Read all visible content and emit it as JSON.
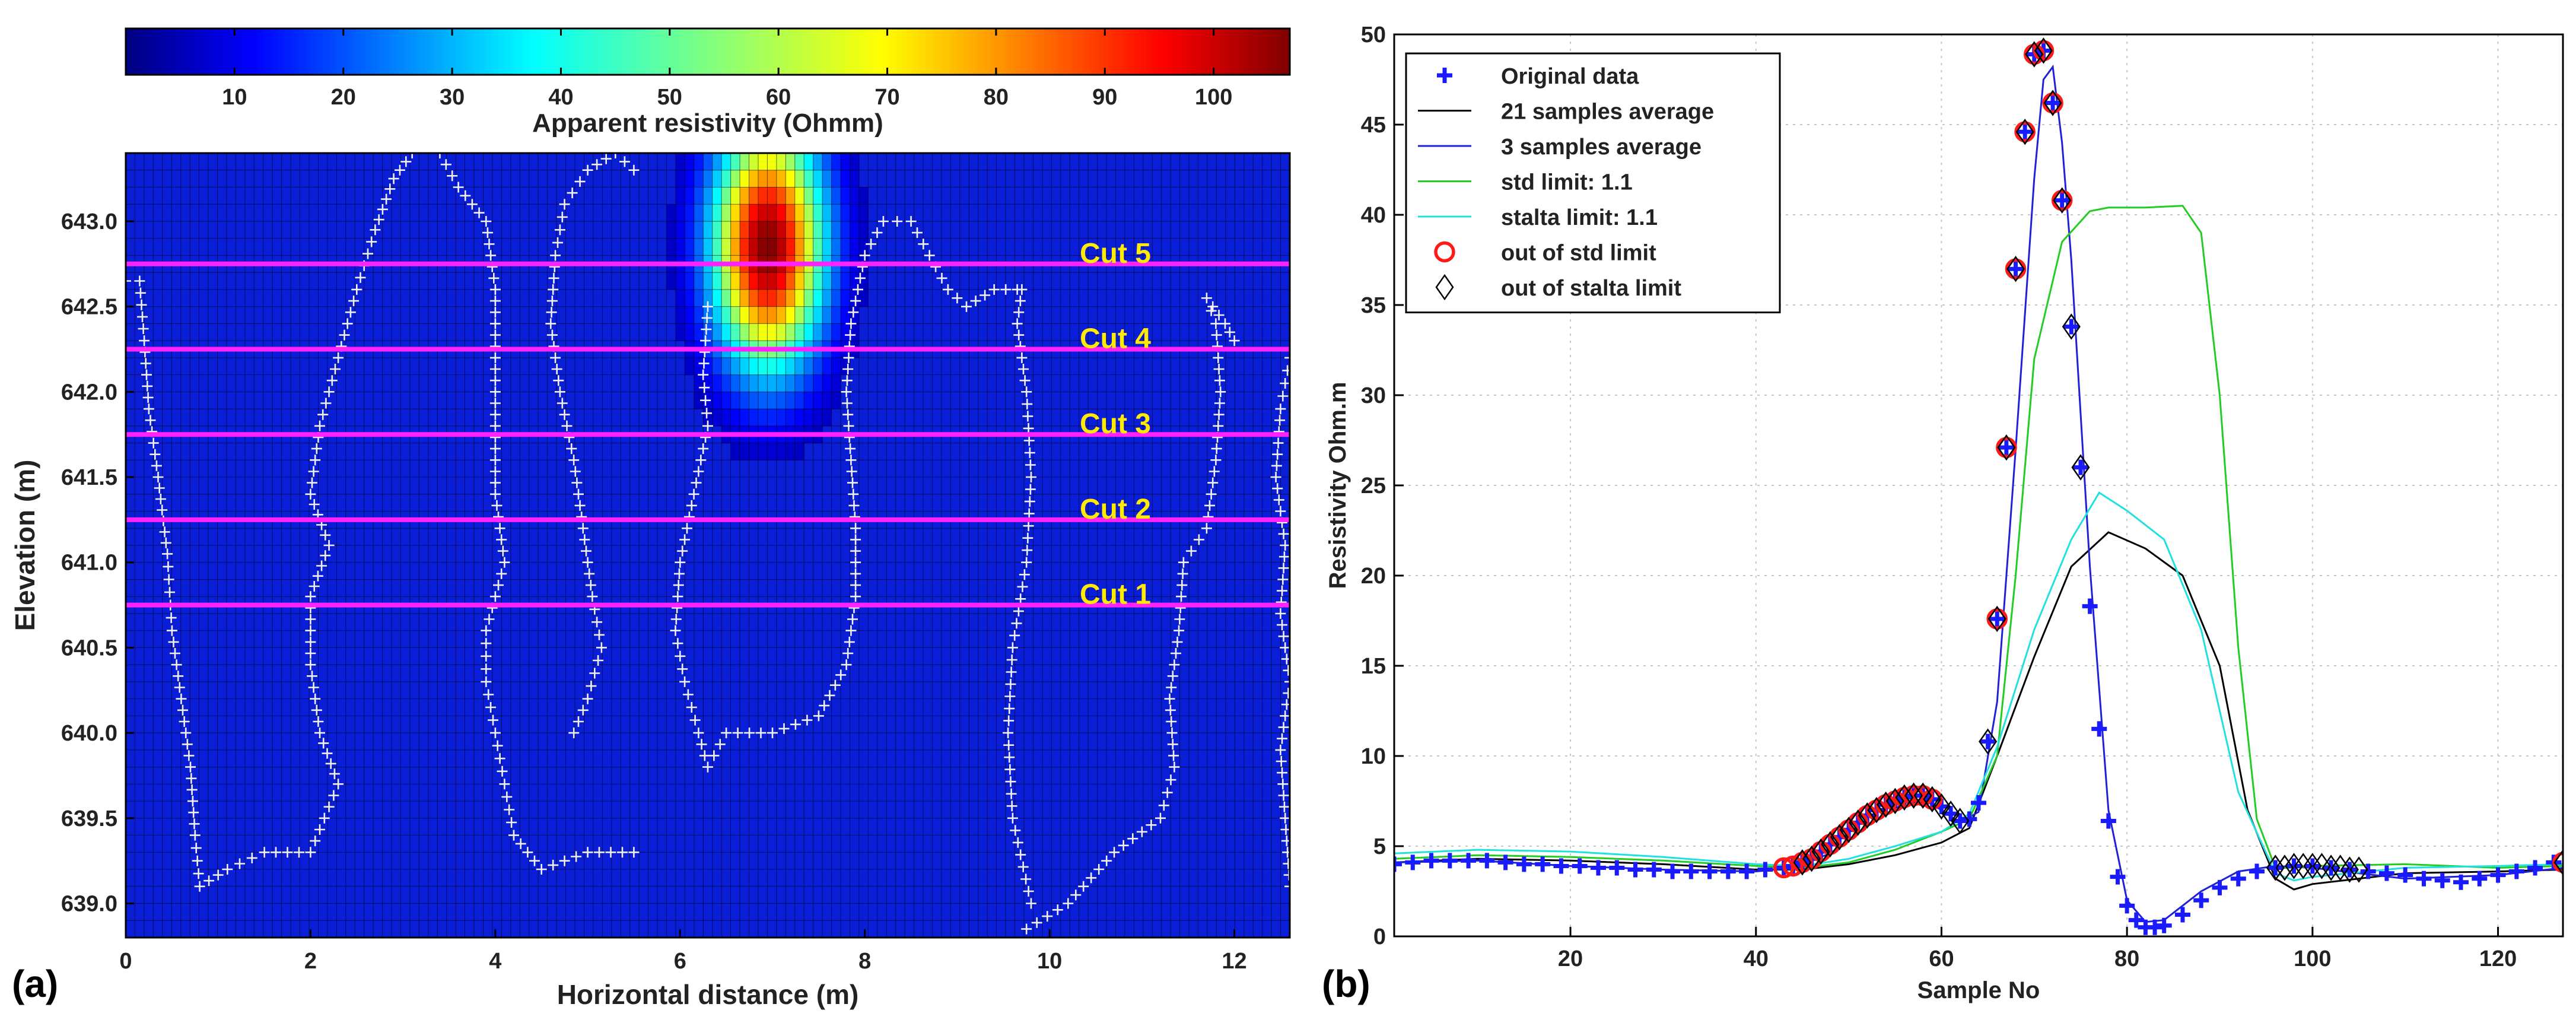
{
  "chart_data": [
    {
      "panel_label": "(a)",
      "type": "heatmap",
      "colorbar": {
        "title": "Apparent resistivity (Ohmm)",
        "range": [
          0,
          107
        ],
        "ticks": [
          10,
          20,
          30,
          40,
          50,
          60,
          70,
          80,
          90,
          100
        ],
        "colormap": "jet"
      },
      "xlabel": "Horizontal distance (m)",
      "ylabel": "Elevation (m)",
      "xlim": [
        0,
        12.6
      ],
      "ylim": [
        638.8,
        643.4
      ],
      "xticks": [
        0,
        2,
        4,
        6,
        8,
        10,
        12
      ],
      "yticks": [
        639.0,
        639.5,
        640.0,
        640.5,
        641.0,
        641.5,
        642.0,
        642.5,
        643.0
      ],
      "ytick_labels": [
        "639.0",
        "639.5",
        "640.0",
        "640.5",
        "641.0",
        "641.5",
        "642.0",
        "642.5",
        "643.0"
      ],
      "background_value": 3,
      "anomaly": {
        "x": 6.95,
        "y": 642.85,
        "peak": 107
      },
      "cuts": [
        {
          "label": "Cut 5",
          "elevation": 642.75
        },
        {
          "label": "Cut 4",
          "elevation": 642.25
        },
        {
          "label": "Cut 3",
          "elevation": 641.75
        },
        {
          "label": "Cut 2",
          "elevation": 641.25
        },
        {
          "label": "Cut 1",
          "elevation": 640.75
        }
      ],
      "cut_color": "#ff22ff",
      "cut_label_color": "#ffea00",
      "contour_color": "#f0f0f0",
      "contours": [
        [
          [
            0.0,
            642.65
          ],
          [
            0.15,
            642.65
          ],
          [
            0.2,
            642.3
          ],
          [
            0.25,
            641.9
          ],
          [
            0.35,
            641.5
          ],
          [
            0.45,
            641.05
          ],
          [
            0.5,
            640.6
          ],
          [
            0.6,
            640.2
          ],
          [
            0.7,
            639.8
          ],
          [
            0.75,
            639.4
          ],
          [
            0.8,
            639.1
          ],
          [
            1.1,
            639.2
          ],
          [
            1.5,
            639.3
          ],
          [
            2.0,
            639.3
          ],
          [
            2.3,
            639.7
          ],
          [
            2.1,
            640.0
          ],
          [
            2.0,
            640.4
          ],
          [
            2.0,
            640.8
          ],
          [
            2.2,
            641.1
          ],
          [
            2.0,
            641.4
          ],
          [
            2.1,
            641.8
          ],
          [
            2.3,
            642.2
          ],
          [
            2.5,
            642.6
          ],
          [
            2.7,
            642.95
          ],
          [
            2.9,
            643.25
          ],
          [
            3.1,
            643.4
          ]
        ],
        [
          [
            3.4,
            643.4
          ],
          [
            3.6,
            643.2
          ],
          [
            3.9,
            643.0
          ],
          [
            4.0,
            642.6
          ],
          [
            4.0,
            642.2
          ],
          [
            4.0,
            641.8
          ],
          [
            4.0,
            641.4
          ],
          [
            4.1,
            641.0
          ],
          [
            3.9,
            640.6
          ],
          [
            3.9,
            640.3
          ],
          [
            4.0,
            640.0
          ],
          [
            4.1,
            639.7
          ],
          [
            4.2,
            639.4
          ],
          [
            4.5,
            639.2
          ],
          [
            5.0,
            639.3
          ],
          [
            5.5,
            639.3
          ]
        ],
        [
          [
            5.5,
            643.3
          ],
          [
            5.3,
            643.4
          ],
          [
            5.0,
            643.3
          ],
          [
            4.75,
            643.1
          ],
          [
            4.65,
            642.8
          ],
          [
            4.6,
            642.4
          ],
          [
            4.7,
            642.0
          ],
          [
            4.85,
            641.6
          ],
          [
            4.95,
            641.2
          ],
          [
            5.05,
            640.8
          ],
          [
            5.15,
            640.5
          ],
          [
            5.0,
            640.2
          ],
          [
            4.85,
            640.0
          ]
        ],
        [
          [
            6.3,
            642.5
          ],
          [
            6.25,
            642.1
          ],
          [
            6.3,
            641.8
          ],
          [
            6.15,
            641.4
          ],
          [
            6.0,
            641.0
          ],
          [
            5.95,
            640.6
          ],
          [
            6.05,
            640.3
          ],
          [
            6.2,
            640.0
          ],
          [
            6.3,
            639.8
          ],
          [
            6.5,
            640.0
          ],
          [
            7.0,
            640.0
          ],
          [
            7.5,
            640.1
          ],
          [
            7.8,
            640.4
          ],
          [
            7.9,
            640.8
          ],
          [
            7.9,
            641.2
          ],
          [
            7.85,
            641.6
          ],
          [
            7.8,
            642.0
          ],
          [
            7.85,
            642.4
          ],
          [
            8.0,
            642.8
          ],
          [
            8.2,
            643.0
          ],
          [
            8.5,
            643.0
          ],
          [
            8.7,
            642.8
          ],
          [
            8.9,
            642.6
          ],
          [
            9.1,
            642.5
          ],
          [
            9.4,
            642.6
          ],
          [
            9.65,
            642.6
          ]
        ],
        [
          [
            9.8,
            639.0
          ],
          [
            9.6,
            639.5
          ],
          [
            9.55,
            640.0
          ],
          [
            9.6,
            640.5
          ],
          [
            9.75,
            641.0
          ],
          [
            9.8,
            641.5
          ],
          [
            9.75,
            642.0
          ],
          [
            9.65,
            642.4
          ],
          [
            9.7,
            642.6
          ]
        ],
        [
          [
            9.75,
            638.85
          ],
          [
            10.2,
            639.0
          ],
          [
            10.7,
            639.3
          ],
          [
            11.2,
            639.5
          ],
          [
            11.35,
            639.8
          ],
          [
            11.3,
            640.2
          ],
          [
            11.4,
            640.6
          ],
          [
            11.45,
            641.0
          ],
          [
            11.7,
            641.2
          ],
          [
            11.8,
            641.6
          ],
          [
            11.85,
            642.0
          ],
          [
            11.8,
            642.4
          ],
          [
            11.7,
            642.55
          ],
          [
            11.9,
            642.4
          ],
          [
            12.0,
            642.3
          ]
        ],
        [
          [
            12.6,
            642.2
          ],
          [
            12.5,
            641.9
          ],
          [
            12.45,
            641.5
          ],
          [
            12.55,
            641.1
          ],
          [
            12.5,
            640.7
          ],
          [
            12.6,
            640.3
          ],
          [
            12.5,
            639.9
          ],
          [
            12.55,
            639.5
          ],
          [
            12.6,
            639.1
          ]
        ]
      ]
    },
    {
      "panel_label": "(b)",
      "type": "line",
      "xlabel": "Sample No",
      "ylabel": "Resistivity Ohm.m",
      "xlim": [
        1,
        127
      ],
      "ylim": [
        0,
        50
      ],
      "xticks": [
        20,
        40,
        60,
        80,
        100,
        120
      ],
      "yticks": [
        0,
        5,
        10,
        15,
        20,
        25,
        30,
        35,
        40,
        45,
        50
      ],
      "grid": true,
      "legend_position": "top-left",
      "series": [
        {
          "name": "Original data",
          "marker": "plus",
          "color": "#1a1aff",
          "x": [
            1,
            3,
            5,
            7,
            9,
            11,
            13,
            15,
            17,
            19,
            21,
            23,
            25,
            27,
            29,
            31,
            33,
            35,
            37,
            39,
            41,
            43,
            44,
            45,
            46,
            47,
            48,
            49,
            50,
            51,
            52,
            53,
            54,
            55,
            56,
            57,
            58,
            59,
            60,
            61,
            62,
            63,
            64,
            65,
            66,
            67,
            68,
            69,
            70,
            71,
            72,
            73,
            74,
            75,
            76,
            77,
            78,
            79,
            80,
            81,
            82,
            83,
            84,
            86,
            88,
            90,
            92,
            94,
            96,
            98,
            100,
            102,
            104,
            106,
            108,
            110,
            112,
            114,
            116,
            118,
            120,
            122,
            124,
            126
          ],
          "y": [
            4.0,
            4.1,
            4.2,
            4.2,
            4.2,
            4.2,
            4.1,
            4.0,
            4.0,
            3.9,
            3.9,
            3.8,
            3.8,
            3.7,
            3.7,
            3.6,
            3.6,
            3.6,
            3.6,
            3.6,
            3.7,
            3.8,
            3.9,
            4.1,
            4.3,
            4.7,
            5.1,
            5.5,
            5.9,
            6.3,
            6.7,
            7.0,
            7.3,
            7.5,
            7.7,
            7.8,
            7.8,
            7.6,
            7.2,
            6.8,
            6.4,
            6.5,
            7.4,
            10.8,
            17.6,
            27.1,
            37.0,
            44.6,
            48.9,
            49.1,
            46.2,
            40.8,
            33.8,
            26.0,
            18.3,
            11.5,
            6.4,
            3.3,
            1.7,
            0.9,
            0.5,
            0.5,
            0.6,
            1.2,
            2.0,
            2.7,
            3.2,
            3.6,
            3.8,
            3.9,
            3.9,
            3.8,
            3.7,
            3.6,
            3.5,
            3.4,
            3.2,
            3.1,
            3.0,
            3.2,
            3.4,
            3.6,
            3.8,
            4.1
          ]
        },
        {
          "name": "21 samples average",
          "color": "#000000",
          "x": [
            1,
            10,
            20,
            30,
            40,
            45,
            50,
            55,
            60,
            63,
            66,
            70,
            74,
            78,
            82,
            86,
            90,
            93,
            96,
            98,
            100,
            110,
            120,
            127
          ],
          "y": [
            4.1,
            4.3,
            4.2,
            4.0,
            3.7,
            3.7,
            4.0,
            4.5,
            5.2,
            6.0,
            10.0,
            15.5,
            20.5,
            22.4,
            21.5,
            20.0,
            15.0,
            7.0,
            3.2,
            2.6,
            2.9,
            3.5,
            3.6,
            3.7
          ]
        },
        {
          "name": "3 samples average",
          "color": "#2020d8",
          "x": [
            1,
            10,
            20,
            30,
            40,
            44,
            48,
            52,
            56,
            58,
            60,
            62,
            64,
            66,
            68,
            70,
            71,
            72,
            73,
            74,
            76,
            78,
            80,
            82,
            84,
            88,
            92,
            96,
            100,
            110,
            120,
            127
          ],
          "y": [
            4.1,
            4.2,
            3.9,
            3.7,
            3.6,
            3.8,
            4.6,
            6.1,
            7.4,
            7.6,
            7.0,
            6.3,
            6.9,
            13.0,
            27.0,
            42.0,
            47.5,
            48.2,
            44.0,
            37.5,
            20.5,
            7.0,
            2.0,
            0.8,
            0.9,
            2.5,
            3.6,
            3.9,
            3.8,
            3.2,
            3.4,
            3.8
          ]
        },
        {
          "name": "std limit: 1.1",
          "color": "#22cc22",
          "x": [
            1,
            10,
            20,
            30,
            40,
            45,
            50,
            55,
            60,
            63,
            66,
            68,
            70,
            73,
            76,
            78,
            82,
            86,
            88,
            90,
            92,
            94,
            96,
            98,
            100,
            110,
            120,
            127
          ],
          "y": [
            4.3,
            4.5,
            4.4,
            4.2,
            3.9,
            3.8,
            4.1,
            4.8,
            5.8,
            6.5,
            10.0,
            20.0,
            32.0,
            38.5,
            40.2,
            40.4,
            40.4,
            40.5,
            39.0,
            30.0,
            16.0,
            6.5,
            3.8,
            3.8,
            3.9,
            4.0,
            3.8,
            3.9
          ]
        },
        {
          "name": "stalta limit: 1.1",
          "color": "#20e0e0",
          "x": [
            1,
            10,
            20,
            30,
            40,
            45,
            50,
            55,
            60,
            63,
            66,
            70,
            74,
            77,
            80,
            84,
            88,
            92,
            96,
            98,
            100,
            110,
            120,
            127
          ],
          "y": [
            4.6,
            4.8,
            4.7,
            4.4,
            4.0,
            3.9,
            4.3,
            5.0,
            5.8,
            6.8,
            10.5,
            17.0,
            22.0,
            24.6,
            23.6,
            22.0,
            17.0,
            8.0,
            3.5,
            3.1,
            3.3,
            3.8,
            3.9,
            4.0
          ]
        },
        {
          "name": "out of std limit",
          "marker": "circle",
          "color": "#ff1a1a",
          "x": [
            43,
            44,
            45,
            46,
            47,
            48,
            49,
            50,
            51,
            52,
            53,
            54,
            55,
            56,
            57,
            58,
            59,
            66,
            67,
            68,
            69,
            70,
            71,
            72,
            73,
            127
          ],
          "y": [
            3.8,
            3.9,
            4.1,
            4.3,
            4.7,
            5.1,
            5.5,
            5.9,
            6.3,
            6.7,
            7.0,
            7.3,
            7.5,
            7.7,
            7.8,
            7.8,
            7.6,
            17.6,
            27.1,
            37.0,
            44.6,
            48.9,
            49.1,
            46.2,
            40.8,
            4.1
          ]
        },
        {
          "name": "out of stalta limit",
          "marker": "diamond",
          "color": "#000000",
          "x": [
            45,
            46,
            47,
            48,
            49,
            50,
            51,
            52,
            53,
            54,
            55,
            56,
            57,
            58,
            59,
            60,
            61,
            62,
            65,
            66,
            67,
            68,
            69,
            70,
            71,
            72,
            73,
            74,
            75,
            96,
            97,
            98,
            99,
            100,
            101,
            102,
            103,
            104,
            105,
            127
          ],
          "y": [
            4.1,
            4.3,
            4.7,
            5.1,
            5.5,
            5.9,
            6.3,
            6.7,
            7.0,
            7.3,
            7.5,
            7.7,
            7.8,
            7.8,
            7.6,
            7.2,
            6.8,
            6.4,
            10.8,
            17.6,
            27.1,
            37.0,
            44.6,
            48.9,
            49.1,
            46.2,
            40.8,
            33.8,
            26.0,
            3.8,
            3.8,
            3.9,
            3.9,
            3.9,
            3.9,
            3.8,
            3.8,
            3.7,
            3.7,
            4.1
          ]
        }
      ]
    }
  ]
}
